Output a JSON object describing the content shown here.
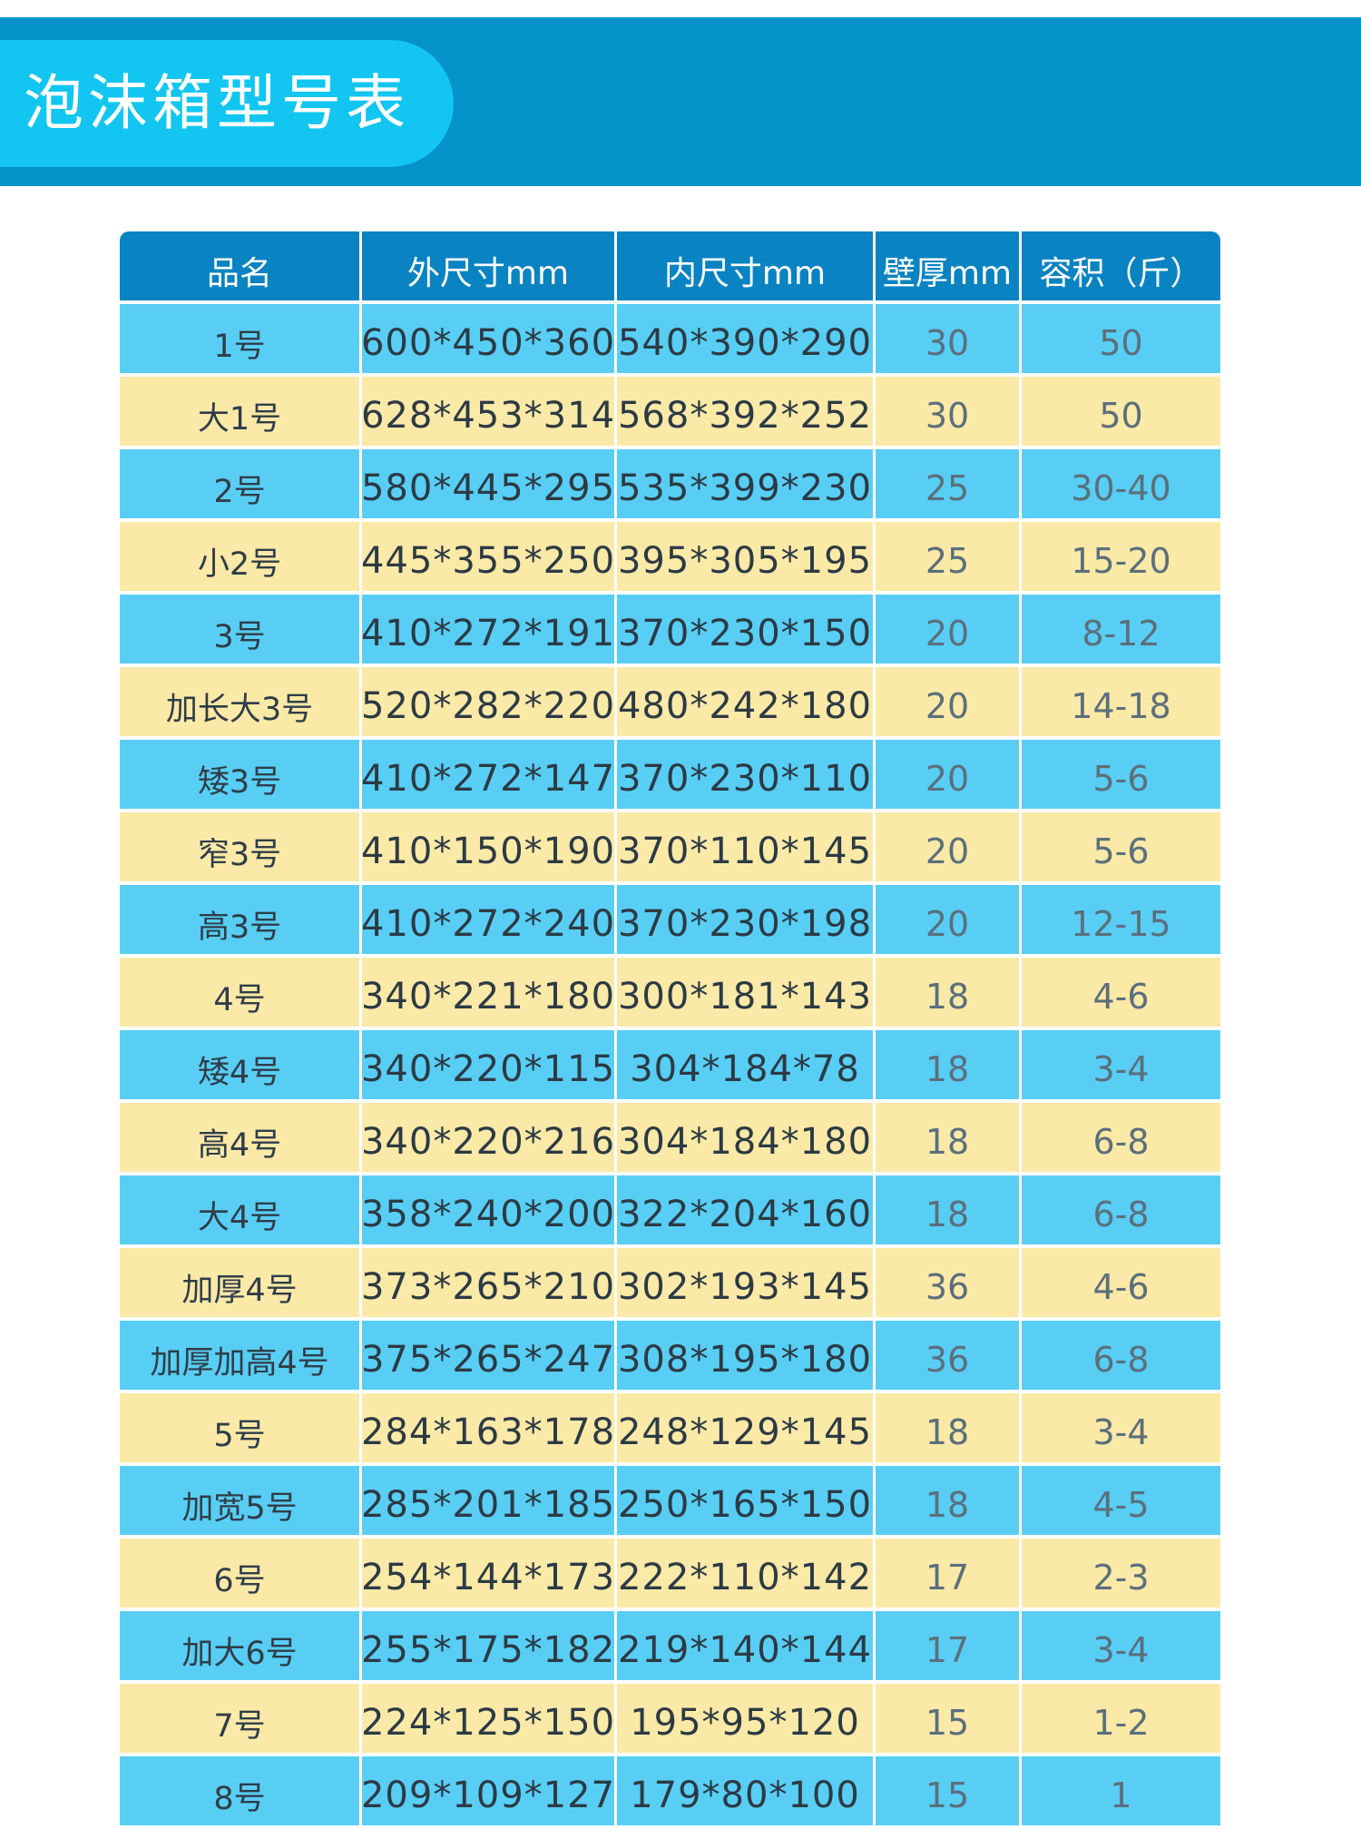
{
  "page": {
    "title": "泡沫箱型号表"
  },
  "table": {
    "headers": [
      "品名",
      "外尺寸mm",
      "内尺寸mm",
      "壁厚mm",
      "容积（斤）"
    ],
    "rows": [
      [
        "1号",
        "600*450*360",
        "540*390*290",
        "30",
        "50"
      ],
      [
        "大1号",
        "628*453*314",
        "568*392*252",
        "30",
        "50"
      ],
      [
        "2号",
        "580*445*295",
        "535*399*230",
        "25",
        "30-40"
      ],
      [
        "小2号",
        "445*355*250",
        "395*305*195",
        "25",
        "15-20"
      ],
      [
        "3号",
        "410*272*191",
        "370*230*150",
        "20",
        "8-12"
      ],
      [
        "加长大3号",
        "520*282*220",
        "480*242*180",
        "20",
        "14-18"
      ],
      [
        "矮3号",
        "410*272*147",
        "370*230*110",
        "20",
        "5-6"
      ],
      [
        "窄3号",
        "410*150*190",
        "370*110*145",
        "20",
        "5-6"
      ],
      [
        "高3号",
        "410*272*240",
        "370*230*198",
        "20",
        "12-15"
      ],
      [
        "4号",
        "340*221*180",
        "300*181*143",
        "18",
        "4-6"
      ],
      [
        "矮4号",
        "340*220*115",
        "304*184*78",
        "18",
        "3-4"
      ],
      [
        "高4号",
        "340*220*216",
        "304*184*180",
        "18",
        "6-8"
      ],
      [
        "大4号",
        "358*240*200",
        "322*204*160",
        "18",
        "6-8"
      ],
      [
        "加厚4号",
        "373*265*210",
        "302*193*145",
        "36",
        "4-6"
      ],
      [
        "加厚加高4号",
        "375*265*247",
        "308*195*180",
        "36",
        "6-8"
      ],
      [
        "5号",
        "284*163*178",
        "248*129*145",
        "18",
        "3-4"
      ],
      [
        "加宽5号",
        "285*201*185",
        "250*165*150",
        "18",
        "4-5"
      ],
      [
        "6号",
        "254*144*173",
        "222*110*142",
        "17",
        "2-3"
      ],
      [
        "加大6号",
        "255*175*182",
        "219*140*144",
        "17",
        "3-4"
      ],
      [
        "7号",
        "224*125*150",
        "195*95*120",
        "15",
        "1-2"
      ],
      [
        "8号",
        "209*109*127",
        "179*80*100",
        "15",
        "1"
      ]
    ]
  },
  "colors": {
    "header_band": "#0593c9",
    "title_pill": "#12c6f1",
    "table_header": "#0983c1",
    "row_blue": "#58cef5",
    "row_yellow": "#fbe9a7"
  }
}
